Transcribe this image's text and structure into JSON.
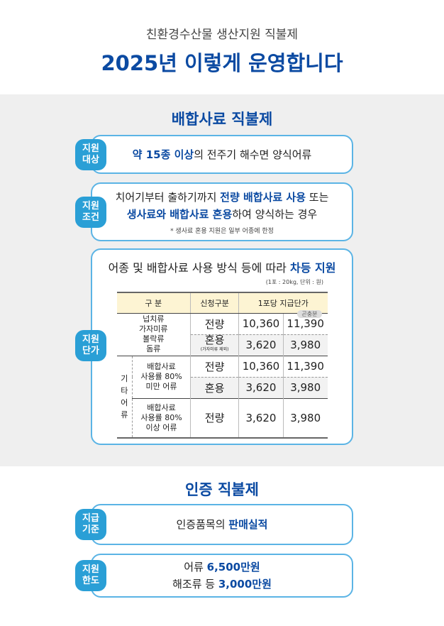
{
  "header": {
    "subtitle": "친환경수산물 생산지원 직불제",
    "title": "2025년 이렇게 운영합니다"
  },
  "feed": {
    "title": "배합사료 직불제",
    "target": {
      "badge": "지원\n대상",
      "segments": [
        {
          "text": "약 15종 이상",
          "hl": true
        },
        {
          "text": "의 전주기 해수면 양식어류",
          "hl": false
        }
      ]
    },
    "condition": {
      "badge": "지원\n조건",
      "line1": [
        {
          "text": "치어기부터 출하기까지 ",
          "hl": false
        },
        {
          "text": "전량 배합사료 사용",
          "hl": true
        },
        {
          "text": " 또는",
          "hl": false
        }
      ],
      "line2": [
        {
          "text": "생사료와 배합사료 혼용",
          "hl": true
        },
        {
          "text": "하여 양식하는 경우",
          "hl": false
        }
      ],
      "note": "* 생사료 혼용 지원은 일부 어종에 한정"
    },
    "price": {
      "badge": "지원\n단가",
      "intro": [
        {
          "text": "어종 및 배합사료 사용 방식 등에 따라 ",
          "hl": false
        },
        {
          "text": "차등 지원",
          "hl": true
        }
      ],
      "unit": "(1포 : 20kg, 단위 : 원)",
      "headers": [
        "구 분",
        "신청구분",
        "1포당 지급단가"
      ],
      "extra_tag": "곤충분",
      "group1": "넙치류\n가자미류\n볼락류\n돔류",
      "other_label": "기\n타\n어\n류",
      "sub1": "배합사료\n사용률 80%\n미만 어류",
      "sub2": "배합사료\n사용률 80%\n이상 어류",
      "rows": [
        {
          "type": "전량",
          "a": "10,360",
          "b": "11,390"
        },
        {
          "type": "혼용",
          "note": "(가자미류 제외)",
          "a": "3,620",
          "b": "3,980"
        },
        {
          "type": "전량",
          "a": "10,360",
          "b": "11,390"
        },
        {
          "type": "혼용",
          "a": "3,620",
          "b": "3,980"
        },
        {
          "type": "전량",
          "a": "3,620",
          "b": "3,980"
        }
      ]
    }
  },
  "cert": {
    "title": "인증 직불제",
    "basis": {
      "badge": "지급\n기준",
      "segments": [
        {
          "text": "인증품목의 ",
          "hl": false
        },
        {
          "text": "판매실적",
          "hl": true
        }
      ]
    },
    "limit": {
      "badge": "지원\n한도",
      "line1": [
        {
          "text": "어류 ",
          "hl": false
        },
        {
          "text": "6,500만원",
          "hl": true
        }
      ],
      "line2": [
        {
          "text": "해조류 등 ",
          "hl": false
        },
        {
          "text": "3,000만원",
          "hl": true
        }
      ]
    }
  },
  "colors": {
    "accent": "#0b4aa2",
    "badge": "#2a9fd6",
    "border": "#5bb4e5"
  }
}
